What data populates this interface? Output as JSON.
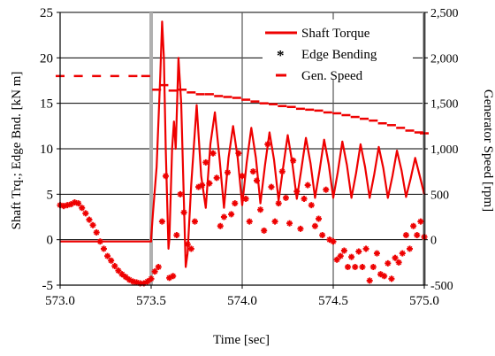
{
  "chart_data": {
    "type": "line",
    "title": "",
    "xlabel": "Time [sec]",
    "ylabel_left": "Shaft Trq.; Edge Bnd. [kN m]",
    "ylabel_right": "Generator Speed [rpm]",
    "xlim": [
      573.0,
      575.0
    ],
    "ylim_left": [
      -5,
      25
    ],
    "ylim_right": [
      -500,
      2500
    ],
    "x_ticks": [
      573.0,
      573.5,
      574.0,
      574.5,
      575.0
    ],
    "x_tick_labels": [
      "573.0",
      "573.5",
      "574.0",
      "574.5",
      "575.0"
    ],
    "y_left_ticks": [
      -5,
      0,
      5,
      10,
      15,
      20,
      25
    ],
    "y_left_tick_labels": [
      "-5",
      "0",
      "5",
      "10",
      "15",
      "20",
      "25"
    ],
    "y_right_ticks": [
      -500,
      0,
      500,
      1000,
      1500,
      2000,
      2500
    ],
    "y_right_tick_labels": [
      "-500",
      "0",
      "500",
      "1,000",
      "1,500",
      "2,000",
      "2,500"
    ],
    "grid": "horizontal lines at left-axis ticks; vertical lines at x ticks",
    "vertical_markers": [
      573.5,
      575.0
    ],
    "legend_position": "top-right",
    "colors": {
      "series": "#ee0000",
      "grid": "#000000",
      "marker_line": "#b0b0b0"
    },
    "series": [
      {
        "name": "Shaft Torque",
        "axis": "left",
        "style": "line",
        "x": [
          573.0,
          573.5,
          573.5,
          573.51,
          573.53,
          573.55,
          573.56,
          573.57,
          573.58,
          573.595,
          573.6,
          573.615,
          573.625,
          573.635,
          573.65,
          573.665,
          573.68,
          573.69,
          573.7,
          573.72,
          573.75,
          573.775,
          573.8,
          573.825,
          573.85,
          573.875,
          573.9,
          573.925,
          573.95,
          573.975,
          574.0,
          574.025,
          574.05,
          574.075,
          574.1,
          574.125,
          574.15,
          574.175,
          574.2,
          574.225,
          574.25,
          574.275,
          574.3,
          574.325,
          574.35,
          574.375,
          574.4,
          574.425,
          574.45,
          574.475,
          574.5,
          574.525,
          574.55,
          574.575,
          574.6,
          574.625,
          574.65,
          574.675,
          574.7,
          574.725,
          574.75,
          574.775,
          574.8,
          574.825,
          574.85,
          574.875,
          574.9,
          574.925,
          574.95,
          574.975,
          575.0
        ],
        "values": [
          -0.2,
          -0.2,
          0.2,
          3.0,
          8.0,
          18.0,
          24.0,
          20.0,
          10.0,
          -1.0,
          0.0,
          10.0,
          13.0,
          10.0,
          20.0,
          15.0,
          4.0,
          -3.0,
          -1.5,
          6.0,
          14.8,
          7.0,
          3.5,
          10.5,
          14.0,
          9.0,
          3.5,
          9.0,
          12.5,
          9.0,
          3.8,
          8.5,
          12.3,
          9.0,
          4.0,
          8.2,
          11.8,
          8.8,
          4.3,
          8.0,
          11.5,
          8.5,
          4.5,
          7.8,
          11.2,
          8.4,
          4.6,
          7.6,
          11.0,
          8.3,
          4.6,
          7.4,
          10.8,
          8.2,
          4.6,
          7.3,
          10.5,
          8.0,
          4.6,
          7.2,
          10.2,
          7.9,
          4.6,
          7.0,
          9.8,
          7.6,
          4.7,
          6.7,
          9.0,
          7.0,
          5.0
        ]
      },
      {
        "name": "Edge Bending",
        "axis": "left",
        "style": "markers",
        "x": [
          573.0,
          573.02,
          573.04,
          573.06,
          573.08,
          573.1,
          573.12,
          573.14,
          573.16,
          573.18,
          573.2,
          573.22,
          573.24,
          573.26,
          573.28,
          573.3,
          573.32,
          573.34,
          573.36,
          573.38,
          573.4,
          573.42,
          573.44,
          573.46,
          573.48,
          573.5,
          573.52,
          573.54,
          573.56,
          573.58,
          573.6,
          573.62,
          573.64,
          573.66,
          573.68,
          573.7,
          573.72,
          573.74,
          573.76,
          573.78,
          573.8,
          573.82,
          573.84,
          573.86,
          573.88,
          573.9,
          573.92,
          573.94,
          573.96,
          573.98,
          574.0,
          574.02,
          574.04,
          574.06,
          574.08,
          574.1,
          574.12,
          574.14,
          574.16,
          574.18,
          574.2,
          574.22,
          574.24,
          574.26,
          574.28,
          574.3,
          574.32,
          574.34,
          574.36,
          574.38,
          574.4,
          574.42,
          574.44,
          574.46,
          574.48,
          574.5,
          574.52,
          574.54,
          574.56,
          574.58,
          574.6,
          574.62,
          574.64,
          574.66,
          574.68,
          574.7,
          574.72,
          574.74,
          574.76,
          574.78,
          574.8,
          574.82,
          574.84,
          574.86,
          574.88,
          574.9,
          574.92,
          574.94,
          574.96,
          574.98,
          575.0
        ],
        "values": [
          3.8,
          3.7,
          3.8,
          3.9,
          4.1,
          4.0,
          3.5,
          2.9,
          2.2,
          1.6,
          0.8,
          -0.2,
          -1.0,
          -1.8,
          -2.3,
          -2.9,
          -3.4,
          -3.8,
          -4.1,
          -4.4,
          -4.6,
          -4.7,
          -4.8,
          -4.8,
          -4.6,
          -4.3,
          -3.5,
          -3.0,
          2.0,
          7.0,
          -4.2,
          -4.0,
          0.5,
          5.0,
          3.0,
          -0.5,
          -1.0,
          2.0,
          5.8,
          6.0,
          8.5,
          6.2,
          9.5,
          6.8,
          1.5,
          2.5,
          7.4,
          2.8,
          4.0,
          9.5,
          7.0,
          4.5,
          2.0,
          7.5,
          6.5,
          3.3,
          1.0,
          10.5,
          5.8,
          2.0,
          4.0,
          7.5,
          4.6,
          1.8,
          8.7,
          5.3,
          1.2,
          4.5,
          6.0,
          3.8,
          1.5,
          2.3,
          0.5,
          5.5,
          0.0,
          -0.2,
          -2.2,
          -1.8,
          -1.2,
          -3.0,
          -1.9,
          -3.0,
          -1.3,
          -3.0,
          -1.0,
          -4.5,
          -3.0,
          -1.5,
          -3.8,
          -4.0,
          -2.6,
          -4.3,
          -2.0,
          -2.5,
          -1.5,
          0.5,
          -1.0,
          1.5,
          0.5,
          2.0,
          0.3
        ]
      },
      {
        "name": "Gen. Speed",
        "axis": "right",
        "style": "dashes",
        "x": [
          573.0,
          573.1,
          573.2,
          573.3,
          573.4,
          573.47,
          573.53,
          573.57,
          573.62,
          573.67,
          573.72,
          573.77,
          573.82,
          573.87,
          573.92,
          573.97,
          574.02,
          574.07,
          574.12,
          574.17,
          574.22,
          574.27,
          574.32,
          574.37,
          574.42,
          574.47,
          574.52,
          574.57,
          574.62,
          574.67,
          574.72,
          574.77,
          574.82,
          574.87,
          574.92,
          574.97,
          575.0
        ],
        "values": [
          1800,
          1800,
          1800,
          1800,
          1800,
          1800,
          1650,
          1700,
          1640,
          1650,
          1620,
          1600,
          1600,
          1580,
          1570,
          1560,
          1540,
          1520,
          1500,
          1490,
          1470,
          1460,
          1440,
          1430,
          1420,
          1400,
          1390,
          1370,
          1350,
          1330,
          1310,
          1280,
          1260,
          1230,
          1200,
          1180,
          1170
        ]
      }
    ]
  }
}
